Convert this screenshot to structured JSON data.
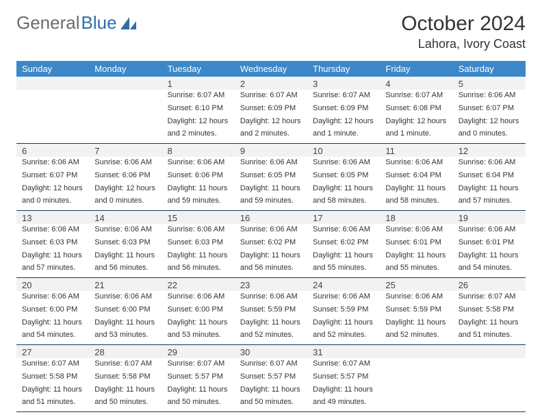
{
  "brand": {
    "general": "General",
    "blue": "Blue"
  },
  "title": "October 2024",
  "location": "Lahora, Ivory Coast",
  "colors": {
    "header_bg": "#3b87c8",
    "header_text": "#ffffff",
    "band_bg": "#f1f2f3",
    "border": "#16365c",
    "page_bg": "#ffffff",
    "title_color": "#333333"
  },
  "day_headers": [
    "Sunday",
    "Monday",
    "Tuesday",
    "Wednesday",
    "Thursday",
    "Friday",
    "Saturday"
  ],
  "weeks": [
    {
      "days": [
        {
          "n": "",
          "sunrise": "",
          "sunset": "",
          "d1": "",
          "d2": ""
        },
        {
          "n": "",
          "sunrise": "",
          "sunset": "",
          "d1": "",
          "d2": ""
        },
        {
          "n": "1",
          "sunrise": "Sunrise: 6:07 AM",
          "sunset": "Sunset: 6:10 PM",
          "d1": "Daylight: 12 hours",
          "d2": "and 2 minutes."
        },
        {
          "n": "2",
          "sunrise": "Sunrise: 6:07 AM",
          "sunset": "Sunset: 6:09 PM",
          "d1": "Daylight: 12 hours",
          "d2": "and 2 minutes."
        },
        {
          "n": "3",
          "sunrise": "Sunrise: 6:07 AM",
          "sunset": "Sunset: 6:09 PM",
          "d1": "Daylight: 12 hours",
          "d2": "and 1 minute."
        },
        {
          "n": "4",
          "sunrise": "Sunrise: 6:07 AM",
          "sunset": "Sunset: 6:08 PM",
          "d1": "Daylight: 12 hours",
          "d2": "and 1 minute."
        },
        {
          "n": "5",
          "sunrise": "Sunrise: 6:06 AM",
          "sunset": "Sunset: 6:07 PM",
          "d1": "Daylight: 12 hours",
          "d2": "and 0 minutes."
        }
      ]
    },
    {
      "days": [
        {
          "n": "6",
          "sunrise": "Sunrise: 6:06 AM",
          "sunset": "Sunset: 6:07 PM",
          "d1": "Daylight: 12 hours",
          "d2": "and 0 minutes."
        },
        {
          "n": "7",
          "sunrise": "Sunrise: 6:06 AM",
          "sunset": "Sunset: 6:06 PM",
          "d1": "Daylight: 12 hours",
          "d2": "and 0 minutes."
        },
        {
          "n": "8",
          "sunrise": "Sunrise: 6:06 AM",
          "sunset": "Sunset: 6:06 PM",
          "d1": "Daylight: 11 hours",
          "d2": "and 59 minutes."
        },
        {
          "n": "9",
          "sunrise": "Sunrise: 6:06 AM",
          "sunset": "Sunset: 6:05 PM",
          "d1": "Daylight: 11 hours",
          "d2": "and 59 minutes."
        },
        {
          "n": "10",
          "sunrise": "Sunrise: 6:06 AM",
          "sunset": "Sunset: 6:05 PM",
          "d1": "Daylight: 11 hours",
          "d2": "and 58 minutes."
        },
        {
          "n": "11",
          "sunrise": "Sunrise: 6:06 AM",
          "sunset": "Sunset: 6:04 PM",
          "d1": "Daylight: 11 hours",
          "d2": "and 58 minutes."
        },
        {
          "n": "12",
          "sunrise": "Sunrise: 6:06 AM",
          "sunset": "Sunset: 6:04 PM",
          "d1": "Daylight: 11 hours",
          "d2": "and 57 minutes."
        }
      ]
    },
    {
      "days": [
        {
          "n": "13",
          "sunrise": "Sunrise: 6:06 AM",
          "sunset": "Sunset: 6:03 PM",
          "d1": "Daylight: 11 hours",
          "d2": "and 57 minutes."
        },
        {
          "n": "14",
          "sunrise": "Sunrise: 6:06 AM",
          "sunset": "Sunset: 6:03 PM",
          "d1": "Daylight: 11 hours",
          "d2": "and 56 minutes."
        },
        {
          "n": "15",
          "sunrise": "Sunrise: 6:06 AM",
          "sunset": "Sunset: 6:03 PM",
          "d1": "Daylight: 11 hours",
          "d2": "and 56 minutes."
        },
        {
          "n": "16",
          "sunrise": "Sunrise: 6:06 AM",
          "sunset": "Sunset: 6:02 PM",
          "d1": "Daylight: 11 hours",
          "d2": "and 56 minutes."
        },
        {
          "n": "17",
          "sunrise": "Sunrise: 6:06 AM",
          "sunset": "Sunset: 6:02 PM",
          "d1": "Daylight: 11 hours",
          "d2": "and 55 minutes."
        },
        {
          "n": "18",
          "sunrise": "Sunrise: 6:06 AM",
          "sunset": "Sunset: 6:01 PM",
          "d1": "Daylight: 11 hours",
          "d2": "and 55 minutes."
        },
        {
          "n": "19",
          "sunrise": "Sunrise: 6:06 AM",
          "sunset": "Sunset: 6:01 PM",
          "d1": "Daylight: 11 hours",
          "d2": "and 54 minutes."
        }
      ]
    },
    {
      "days": [
        {
          "n": "20",
          "sunrise": "Sunrise: 6:06 AM",
          "sunset": "Sunset: 6:00 PM",
          "d1": "Daylight: 11 hours",
          "d2": "and 54 minutes."
        },
        {
          "n": "21",
          "sunrise": "Sunrise: 6:06 AM",
          "sunset": "Sunset: 6:00 PM",
          "d1": "Daylight: 11 hours",
          "d2": "and 53 minutes."
        },
        {
          "n": "22",
          "sunrise": "Sunrise: 6:06 AM",
          "sunset": "Sunset: 6:00 PM",
          "d1": "Daylight: 11 hours",
          "d2": "and 53 minutes."
        },
        {
          "n": "23",
          "sunrise": "Sunrise: 6:06 AM",
          "sunset": "Sunset: 5:59 PM",
          "d1": "Daylight: 11 hours",
          "d2": "and 52 minutes."
        },
        {
          "n": "24",
          "sunrise": "Sunrise: 6:06 AM",
          "sunset": "Sunset: 5:59 PM",
          "d1": "Daylight: 11 hours",
          "d2": "and 52 minutes."
        },
        {
          "n": "25",
          "sunrise": "Sunrise: 6:06 AM",
          "sunset": "Sunset: 5:59 PM",
          "d1": "Daylight: 11 hours",
          "d2": "and 52 minutes."
        },
        {
          "n": "26",
          "sunrise": "Sunrise: 6:07 AM",
          "sunset": "Sunset: 5:58 PM",
          "d1": "Daylight: 11 hours",
          "d2": "and 51 minutes."
        }
      ]
    },
    {
      "days": [
        {
          "n": "27",
          "sunrise": "Sunrise: 6:07 AM",
          "sunset": "Sunset: 5:58 PM",
          "d1": "Daylight: 11 hours",
          "d2": "and 51 minutes."
        },
        {
          "n": "28",
          "sunrise": "Sunrise: 6:07 AM",
          "sunset": "Sunset: 5:58 PM",
          "d1": "Daylight: 11 hours",
          "d2": "and 50 minutes."
        },
        {
          "n": "29",
          "sunrise": "Sunrise: 6:07 AM",
          "sunset": "Sunset: 5:57 PM",
          "d1": "Daylight: 11 hours",
          "d2": "and 50 minutes."
        },
        {
          "n": "30",
          "sunrise": "Sunrise: 6:07 AM",
          "sunset": "Sunset: 5:57 PM",
          "d1": "Daylight: 11 hours",
          "d2": "and 50 minutes."
        },
        {
          "n": "31",
          "sunrise": "Sunrise: 6:07 AM",
          "sunset": "Sunset: 5:57 PM",
          "d1": "Daylight: 11 hours",
          "d2": "and 49 minutes."
        },
        {
          "n": "",
          "sunrise": "",
          "sunset": "",
          "d1": "",
          "d2": ""
        },
        {
          "n": "",
          "sunrise": "",
          "sunset": "",
          "d1": "",
          "d2": ""
        }
      ]
    }
  ]
}
